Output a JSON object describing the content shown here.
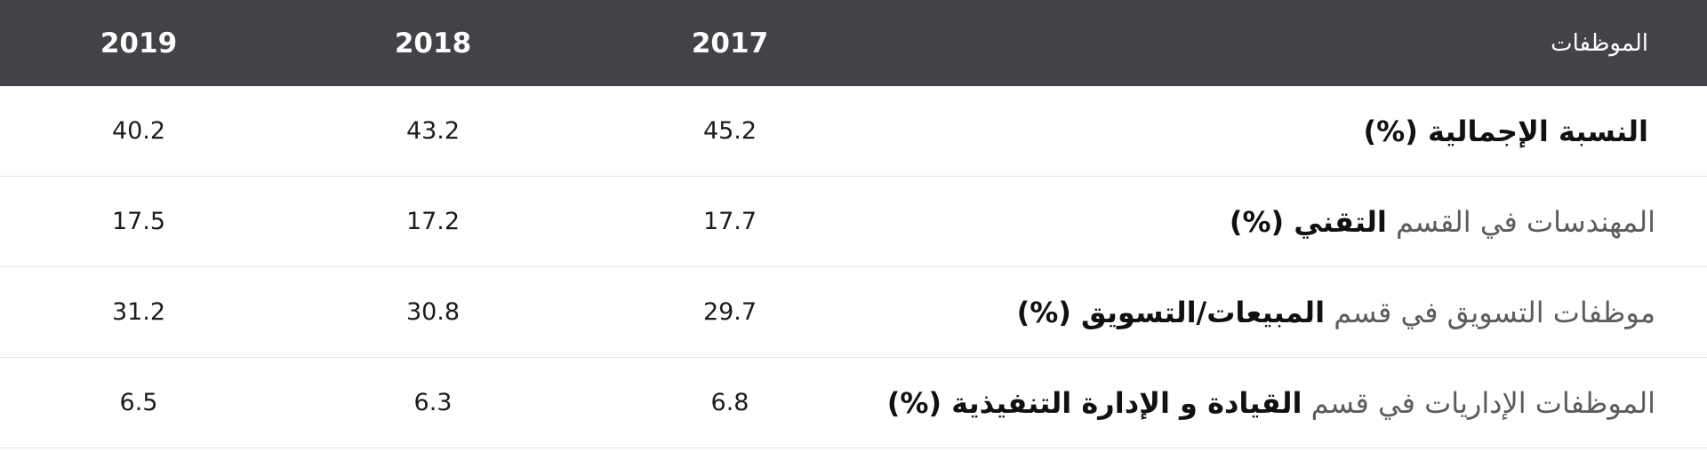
{
  "table": {
    "header": {
      "label": "الموظفات",
      "years": [
        "2019",
        "2018",
        "2017"
      ]
    },
    "rows": [
      {
        "label_plain": "",
        "label_bold": "النسبة الإجمالية (%)",
        "v2019": "40.2",
        "v2018": "43.2",
        "v2017": "45.2"
      },
      {
        "label_plain": "المهندسات في القسم",
        "label_bold": "التقني (%)",
        "v2019": "17.5",
        "v2018": "17.2",
        "v2017": "17.7"
      },
      {
        "label_plain": "موظفات التسويق في قسم",
        "label_bold": "المبيعات/التسويق (%)",
        "v2019": "31.2",
        "v2018": "30.8",
        "v2017": "29.7"
      },
      {
        "label_plain": "الموظفات الإداريات في قسم",
        "label_bold": "القيادة و الإدارة التنفيذية (%)",
        "v2019": "6.5",
        "v2018": "6.3",
        "v2017": "6.8"
      }
    ]
  }
}
